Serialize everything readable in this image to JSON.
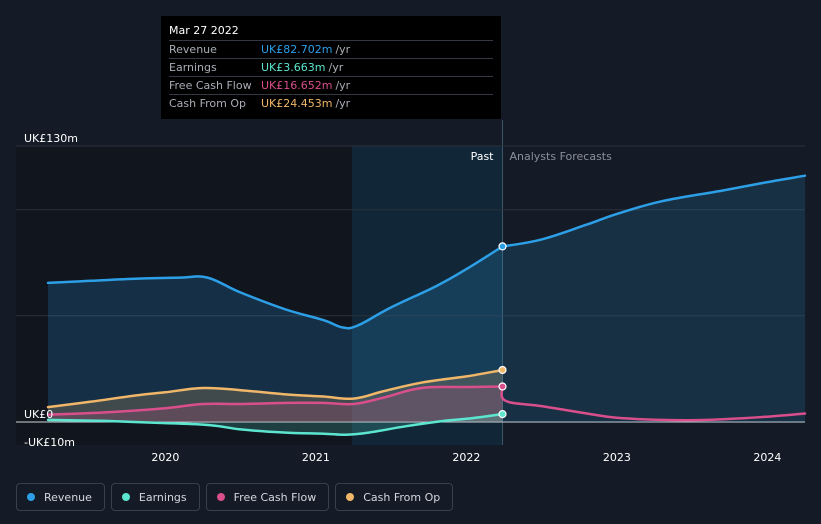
{
  "tooltip": {
    "date": "Mar 27 2022",
    "rows": [
      {
        "label": "Revenue",
        "value": "UK£82.702m",
        "unit": "/yr",
        "color": "#2d9fe6"
      },
      {
        "label": "Earnings",
        "value": "UK£3.663m",
        "unit": "/yr",
        "color": "#5ce6cf"
      },
      {
        "label": "Free Cash Flow",
        "value": "UK£16.652m",
        "unit": "/yr",
        "color": "#d94f8c"
      },
      {
        "label": "Cash From Op",
        "value": "UK£24.453m",
        "unit": "/yr",
        "color": "#f0b669"
      }
    ]
  },
  "legend": [
    {
      "label": "Revenue",
      "color": "#2d9fe6"
    },
    {
      "label": "Earnings",
      "color": "#5ce6cf"
    },
    {
      "label": "Free Cash Flow",
      "color": "#d94f8c"
    },
    {
      "label": "Cash From Op",
      "color": "#f0b669"
    }
  ],
  "chart_data": {
    "type": "line",
    "title": "",
    "xlabel": "",
    "ylabel": "",
    "ylim": [
      -10,
      130
    ],
    "xlim": [
      2019.22,
      2024.25
    ],
    "y_tick_labels": [
      {
        "value": 130,
        "label": "UK£130m"
      },
      {
        "value": 0,
        "label": "UK£0"
      },
      {
        "value": -10,
        "label": "-UK£10m"
      }
    ],
    "x_tick_labels": [
      {
        "value": 2020,
        "label": "2020"
      },
      {
        "value": 2021,
        "label": "2021"
      },
      {
        "value": 2022,
        "label": "2022"
      },
      {
        "value": 2023,
        "label": "2023"
      },
      {
        "value": 2024,
        "label": "2024"
      }
    ],
    "region_labels": {
      "past": "Past",
      "forecast": "Analysts Forecasts"
    },
    "past_start": 2021.24,
    "split_x": 2022.24,
    "series": [
      {
        "name": "Revenue",
        "color": "#2d9fe6",
        "fill": true,
        "points": [
          [
            2019.22,
            65.5
          ],
          [
            2019.5,
            66.5
          ],
          [
            2019.8,
            67.5
          ],
          [
            2020.1,
            68
          ],
          [
            2020.28,
            68
          ],
          [
            2020.5,
            61
          ],
          [
            2020.8,
            53
          ],
          [
            2021.05,
            48
          ],
          [
            2021.18,
            44.5
          ],
          [
            2021.28,
            45.5
          ],
          [
            2021.5,
            54
          ],
          [
            2021.8,
            64
          ],
          [
            2022.0,
            72
          ],
          [
            2022.24,
            82.7
          ]
        ]
      },
      {
        "name": "Revenue forecast",
        "color": "#2d9fe6",
        "fill": true,
        "forecast": true,
        "points": [
          [
            2022.24,
            82.7
          ],
          [
            2022.5,
            86
          ],
          [
            2022.8,
            93
          ],
          [
            2023.0,
            98
          ],
          [
            2023.3,
            104
          ],
          [
            2023.7,
            109
          ],
          [
            2024.0,
            113
          ],
          [
            2024.25,
            116
          ]
        ]
      },
      {
        "name": "Cash From Op",
        "color": "#f0b669",
        "fill": true,
        "points": [
          [
            2019.22,
            7
          ],
          [
            2019.5,
            9.5
          ],
          [
            2019.8,
            12.5
          ],
          [
            2020.0,
            14
          ],
          [
            2020.25,
            16
          ],
          [
            2020.5,
            15
          ],
          [
            2020.8,
            13
          ],
          [
            2021.05,
            12
          ],
          [
            2021.25,
            11
          ],
          [
            2021.45,
            14.5
          ],
          [
            2021.7,
            18.5
          ],
          [
            2022.0,
            21.5
          ],
          [
            2022.24,
            24.5
          ]
        ]
      },
      {
        "name": "Free Cash Flow",
        "color": "#d94f8c",
        "fill": true,
        "points": [
          [
            2019.22,
            3.5
          ],
          [
            2019.6,
            4.5
          ],
          [
            2020.0,
            6.5
          ],
          [
            2020.25,
            8.5
          ],
          [
            2020.5,
            8.5
          ],
          [
            2020.8,
            9
          ],
          [
            2021.05,
            9
          ],
          [
            2021.25,
            8.5
          ],
          [
            2021.45,
            11.5
          ],
          [
            2021.7,
            16
          ],
          [
            2022.0,
            16.5
          ],
          [
            2022.24,
            16.7
          ]
        ]
      },
      {
        "name": "Free Cash Flow forecast",
        "color": "#d94f8c",
        "fill": false,
        "forecast": true,
        "points": [
          [
            2022.24,
            16.7
          ],
          [
            2022.26,
            10
          ],
          [
            2022.5,
            7.5
          ],
          [
            2022.8,
            4
          ],
          [
            2023.0,
            2
          ],
          [
            2023.3,
            1
          ],
          [
            2023.6,
            1
          ],
          [
            2024.0,
            2.5
          ],
          [
            2024.25,
            4
          ]
        ]
      },
      {
        "name": "Earnings",
        "color": "#5ce6cf",
        "fill": true,
        "points": [
          [
            2019.22,
            1
          ],
          [
            2019.6,
            0.5
          ],
          [
            2020.0,
            -0.5
          ],
          [
            2020.3,
            -1.5
          ],
          [
            2020.5,
            -3.5
          ],
          [
            2020.8,
            -5
          ],
          [
            2021.05,
            -5.5
          ],
          [
            2021.2,
            -6
          ],
          [
            2021.35,
            -5
          ],
          [
            2021.6,
            -2
          ],
          [
            2021.85,
            0.5
          ],
          [
            2022.0,
            1.5
          ],
          [
            2022.24,
            3.7
          ]
        ]
      }
    ],
    "markers": [
      {
        "series": "Revenue",
        "x": 2022.24,
        "y": 82.7
      },
      {
        "series": "Cash From Op",
        "x": 2022.24,
        "y": 24.5
      },
      {
        "series": "Free Cash Flow",
        "x": 2022.24,
        "y": 16.7
      },
      {
        "series": "Earnings",
        "x": 2022.24,
        "y": 3.7
      }
    ]
  }
}
